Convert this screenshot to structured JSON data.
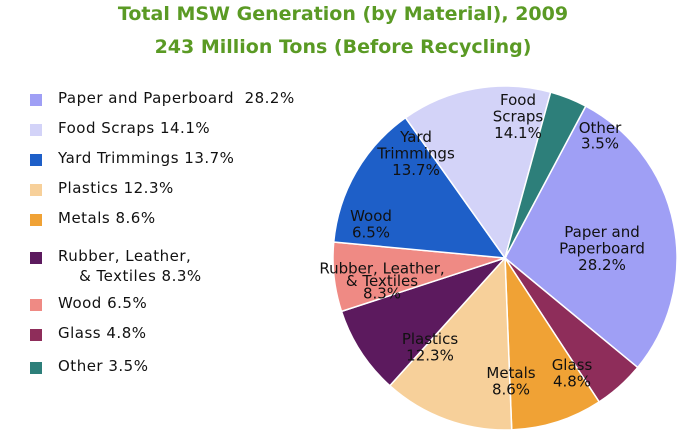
{
  "chart_data": {
    "type": "pie",
    "title": "Total MSW Generation (by Material), 2009",
    "subtitle": "243 Million Tons (Before Recycling)",
    "slices": [
      {
        "name": "Paper and Paperboard",
        "value": 28.2,
        "value_label": "28.2%",
        "color": "#9f9ff5",
        "label_lines": [
          "Paper and",
          "Paperboard",
          "28.2%"
        ],
        "legend_lines": [
          "Paper and Paperboard  28.2%"
        ]
      },
      {
        "name": "Glass",
        "value": 4.8,
        "value_label": "4.8%",
        "color": "#8e2d5a",
        "label_lines": [
          "Glass",
          "4.8%"
        ],
        "legend_lines": [
          "Glass 4.8%"
        ]
      },
      {
        "name": "Metals",
        "value": 8.6,
        "value_label": "8.6%",
        "color": "#f0a235",
        "label_lines": [
          "Metals",
          "8.6%"
        ],
        "legend_lines": [
          "Metals 8.6%"
        ]
      },
      {
        "name": "Plastics",
        "value": 12.3,
        "value_label": "12.3%",
        "color": "#f7d09a",
        "label_lines": [
          "Plastics",
          "12.3%"
        ],
        "legend_lines": [
          "Plastics 12.3%"
        ]
      },
      {
        "name": "Rubber, Leather, & Textiles",
        "value": 8.3,
        "value_label": "8.3%",
        "color": "#5c1a5e",
        "label_lines": [
          "Rubber, Leather,",
          "& Textiles",
          "8.3%"
        ],
        "legend_lines": [
          "Rubber, Leather,",
          "    & Textiles 8.3%"
        ]
      },
      {
        "name": "Wood",
        "value": 6.5,
        "value_label": "6.5%",
        "color": "#ef8a84",
        "label_lines": [
          "Wood",
          "6.5%"
        ],
        "legend_lines": [
          "Wood 6.5%"
        ]
      },
      {
        "name": "Yard Trimmings",
        "value": 13.7,
        "value_label": "13.7%",
        "color": "#1e5fc8",
        "label_lines": [
          "Yard",
          "Trimmings",
          "13.7%"
        ],
        "legend_lines": [
          "Yard Trimmings 13.7%"
        ]
      },
      {
        "name": "Food Scraps",
        "value": 14.1,
        "value_label": "14.1%",
        "color": "#d3d3f8",
        "label_lines": [
          "Food",
          "Scraps",
          "14.1%"
        ],
        "legend_lines": [
          "Food Scraps 14.1%"
        ]
      },
      {
        "name": "Other",
        "value": 3.5,
        "value_label": "3.5%",
        "color": "#2d7f7a",
        "label_lines": [
          "Other",
          "3.5%"
        ],
        "legend_lines": [
          "Other 3.5%"
        ]
      }
    ],
    "legend_order": [
      "Paper and Paperboard",
      "Food Scraps",
      "Yard Trimmings",
      "Plastics",
      "Metals",
      "Rubber, Leather, & Textiles",
      "Wood",
      "Glass",
      "Other"
    ],
    "legend_placement": "left"
  }
}
